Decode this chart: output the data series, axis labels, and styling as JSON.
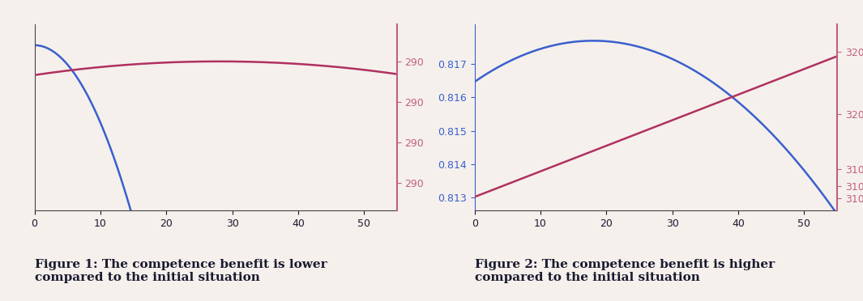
{
  "fig1": {
    "title": "Figure 1: The competence benefit is lower\ncompared to the initial situation",
    "x_max": 55,
    "x_ticks": [
      0,
      10,
      20,
      30,
      40,
      50
    ],
    "blue_color": "#3a5fcd",
    "red_color": "#b03060",
    "right_axis_color": "#c06080"
  },
  "fig2": {
    "title": "Figure 2: The competence benefit is higher\ncompared to the initial situation",
    "x_max": 55,
    "x_ticks": [
      0,
      10,
      20,
      30,
      40,
      50
    ],
    "blue_color": "#3a5fcd",
    "red_color": "#b03060",
    "right_axis_color": "#c06080"
  },
  "fig_bg": "#f5f0ec",
  "text_color": "#1a1a2e",
  "axis_color": "#444444",
  "title_fontsize": 11,
  "tick_fontsize": 9
}
